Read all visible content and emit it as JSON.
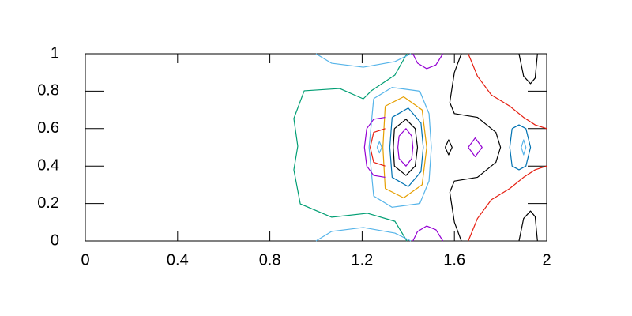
{
  "chart_data": {
    "type": "contour",
    "xlim": [
      0,
      2
    ],
    "ylim": [
      0,
      1
    ],
    "xticks": [
      0,
      0.4,
      0.8,
      1.2,
      1.6,
      2
    ],
    "yticks": [
      0,
      0.2,
      0.4,
      0.6,
      0.8,
      1
    ],
    "series": [
      {
        "color": "#009e73",
        "x": [
          1.394,
          1.342,
          1.24,
          1.205,
          1.103,
          0.949,
          0.904,
          0.921,
          0.904,
          0.932,
          1.068,
          1.223,
          1.342,
          1.394
        ],
        "y": [
          1,
          0.886,
          0.802,
          0.759,
          0.814,
          0.802,
          0.654,
          0.506,
          0.38,
          0.198,
          0.127,
          0.148,
          0.105,
          0
        ]
      },
      {
        "color": "#56b4e9",
        "x": [
          1.0,
          1.068,
          1.205,
          1.342,
          1.411
        ],
        "y": [
          1,
          0.949,
          0.928,
          0.958,
          1
        ]
      },
      {
        "color": "#56b4e9",
        "x": [
          1.0,
          1.068,
          1.205,
          1.342,
          1.411
        ],
        "y": [
          0,
          0.051,
          0.072,
          0.042,
          0
        ]
      },
      {
        "color": "#56b4e9",
        "x": [
          1.25,
          1.33,
          1.45,
          1.49,
          1.5,
          1.49,
          1.45,
          1.33,
          1.25,
          1.23,
          1.25
        ],
        "y": [
          0.76,
          0.82,
          0.8,
          0.68,
          0.5,
          0.32,
          0.2,
          0.18,
          0.24,
          0.5,
          0.76
        ]
      },
      {
        "color": "#e69f00",
        "x": [
          1.3,
          1.38,
          1.46,
          1.48,
          1.46,
          1.38,
          1.3,
          1.29,
          1.3
        ],
        "y": [
          0.72,
          0.77,
          0.7,
          0.5,
          0.3,
          0.23,
          0.28,
          0.5,
          0.72
        ]
      },
      {
        "color": "#0072b2",
        "x": [
          1.33,
          1.4,
          1.455,
          1.465,
          1.455,
          1.4,
          1.33,
          1.32,
          1.33
        ],
        "y": [
          0.66,
          0.71,
          0.63,
          0.5,
          0.37,
          0.29,
          0.34,
          0.5,
          0.66
        ]
      },
      {
        "color": "#000000",
        "x": [
          1.34,
          1.39,
          1.43,
          1.44,
          1.43,
          1.39,
          1.34,
          1.335,
          1.34
        ],
        "y": [
          0.6,
          0.65,
          0.6,
          0.5,
          0.4,
          0.35,
          0.4,
          0.5,
          0.6
        ]
      },
      {
        "color": "#9400d3",
        "x": [
          1.36,
          1.39,
          1.415,
          1.42,
          1.415,
          1.39,
          1.36,
          1.355,
          1.36
        ],
        "y": [
          0.56,
          0.6,
          0.56,
          0.5,
          0.44,
          0.4,
          0.44,
          0.5,
          0.56
        ]
      },
      {
        "color": "#9400d3",
        "x": [
          1.3,
          1.25,
          1.22,
          1.21,
          1.22,
          1.25,
          1.3
        ],
        "y": [
          0.66,
          0.65,
          0.6,
          0.5,
          0.4,
          0.35,
          0.34
        ]
      },
      {
        "color": "#e51e10",
        "x": [
          1.3,
          1.25,
          1.235,
          1.25,
          1.3
        ],
        "y": [
          0.6,
          0.58,
          0.5,
          0.42,
          0.4
        ]
      },
      {
        "color": "#56b4e9",
        "x": [
          1.265,
          1.275,
          1.285,
          1.275,
          1.265
        ],
        "y": [
          0.5,
          0.53,
          0.5,
          0.47,
          0.5
        ]
      },
      {
        "color": "#000000",
        "x": [
          1.56,
          1.575,
          1.59,
          1.575,
          1.56
        ],
        "y": [
          0.5,
          0.54,
          0.5,
          0.46,
          0.5
        ]
      },
      {
        "color": "#9400d3",
        "x": [
          1.66,
          1.69,
          1.72,
          1.69,
          1.66
        ],
        "y": [
          0.5,
          0.55,
          0.5,
          0.45,
          0.5
        ]
      },
      {
        "color": "#000000",
        "x": [
          1.63,
          1.6,
          1.58,
          1.6,
          1.7,
          1.78,
          1.8,
          1.78,
          1.7,
          1.6,
          1.58,
          1.6,
          1.63
        ],
        "y": [
          1,
          0.9,
          0.74,
          0.68,
          0.66,
          0.58,
          0.5,
          0.42,
          0.34,
          0.32,
          0.26,
          0.1,
          0
        ]
      },
      {
        "color": "#e51e10",
        "x": [
          1.66,
          1.7,
          1.76,
          1.84,
          1.9,
          1.95,
          2.0
        ],
        "y": [
          1,
          0.88,
          0.78,
          0.72,
          0.66,
          0.62,
          0.6
        ]
      },
      {
        "color": "#e51e10",
        "x": [
          1.66,
          1.7,
          1.76,
          1.84,
          1.9,
          1.95,
          2.0
        ],
        "y": [
          0,
          0.12,
          0.22,
          0.28,
          0.34,
          0.38,
          0.4
        ]
      },
      {
        "color": "#0072b2",
        "x": [
          1.85,
          1.88,
          1.91,
          1.93,
          1.91,
          1.88,
          1.85,
          1.84,
          1.85
        ],
        "y": [
          0.6,
          0.62,
          0.6,
          0.5,
          0.4,
          0.38,
          0.4,
          0.5,
          0.6
        ]
      },
      {
        "color": "#56b4e9",
        "x": [
          1.89,
          1.9,
          1.91,
          1.9,
          1.89
        ],
        "y": [
          0.5,
          0.54,
          0.5,
          0.46,
          0.5
        ]
      },
      {
        "color": "#000000",
        "x": [
          1.88,
          1.9,
          1.93,
          1.95,
          1.96
        ],
        "y": [
          1,
          0.88,
          0.84,
          0.87,
          1
        ]
      },
      {
        "color": "#000000",
        "x": [
          1.88,
          1.9,
          1.93,
          1.95,
          1.96
        ],
        "y": [
          0,
          0.12,
          0.16,
          0.13,
          0
        ]
      },
      {
        "color": "#9400d3",
        "x": [
          1.42,
          1.44,
          1.48,
          1.52,
          1.55
        ],
        "y": [
          1,
          0.95,
          0.92,
          0.94,
          1
        ]
      },
      {
        "color": "#9400d3",
        "x": [
          1.42,
          1.44,
          1.48,
          1.52,
          1.55
        ],
        "y": [
          0,
          0.05,
          0.08,
          0.06,
          0
        ]
      }
    ]
  }
}
